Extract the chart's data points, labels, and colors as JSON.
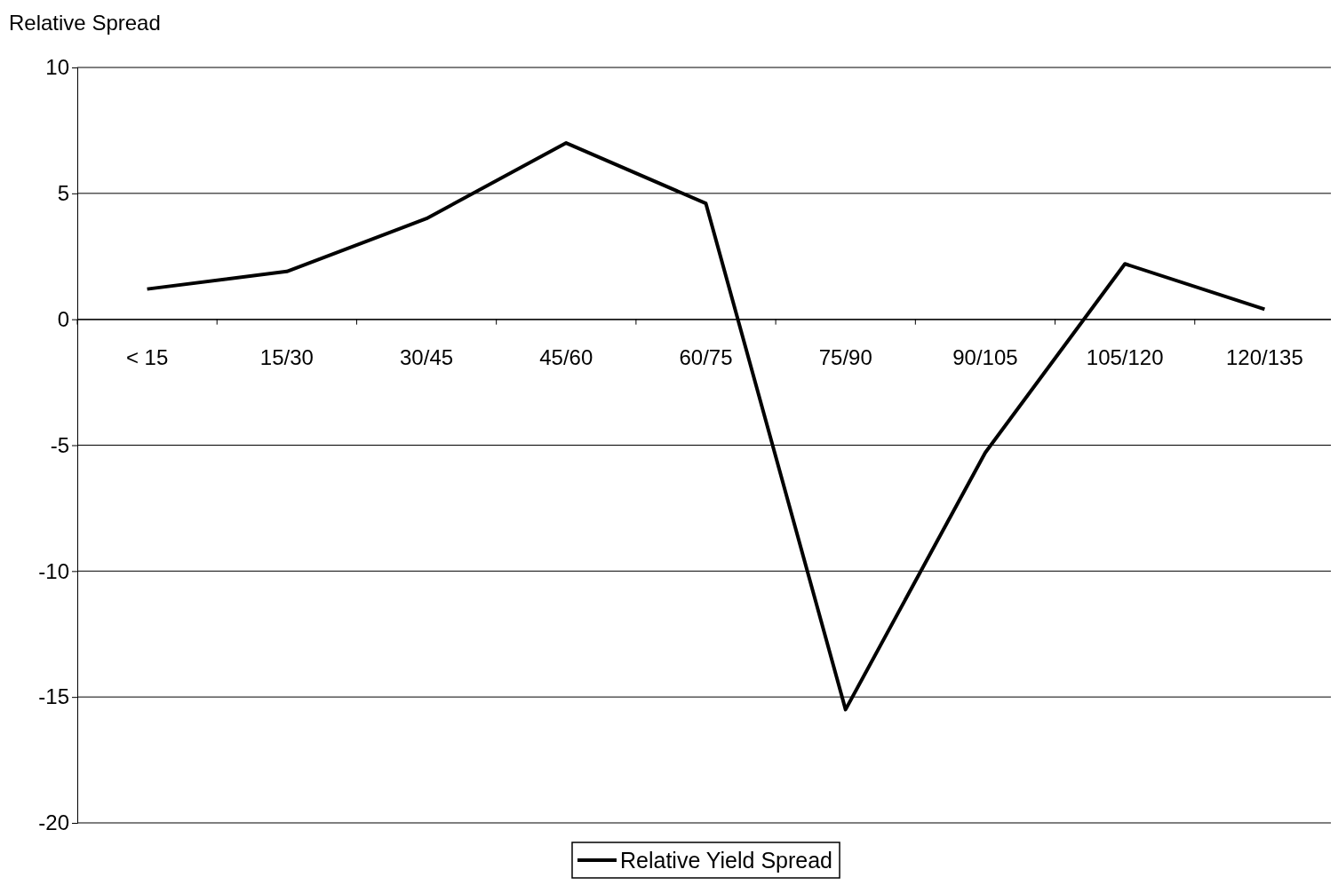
{
  "chart_data": {
    "type": "line",
    "ylabel": "Relative Spread",
    "categories": [
      "< 15",
      "15/30",
      "30/45",
      "45/60",
      "60/75",
      "75/90",
      "90/105",
      "105/120",
      "120/135"
    ],
    "series": [
      {
        "name": "Relative Yield Spread",
        "color": "#000000",
        "values": [
          1.2,
          1.9,
          4.0,
          7.0,
          4.6,
          -15.5,
          -5.3,
          2.2,
          0.4
        ]
      }
    ],
    "ylim": [
      -20,
      10
    ],
    "yticks": [
      -20,
      -15,
      -10,
      -5,
      0,
      5,
      10
    ],
    "grid": "y",
    "legend": "bottom",
    "marker": "none",
    "line_style": "solid"
  }
}
